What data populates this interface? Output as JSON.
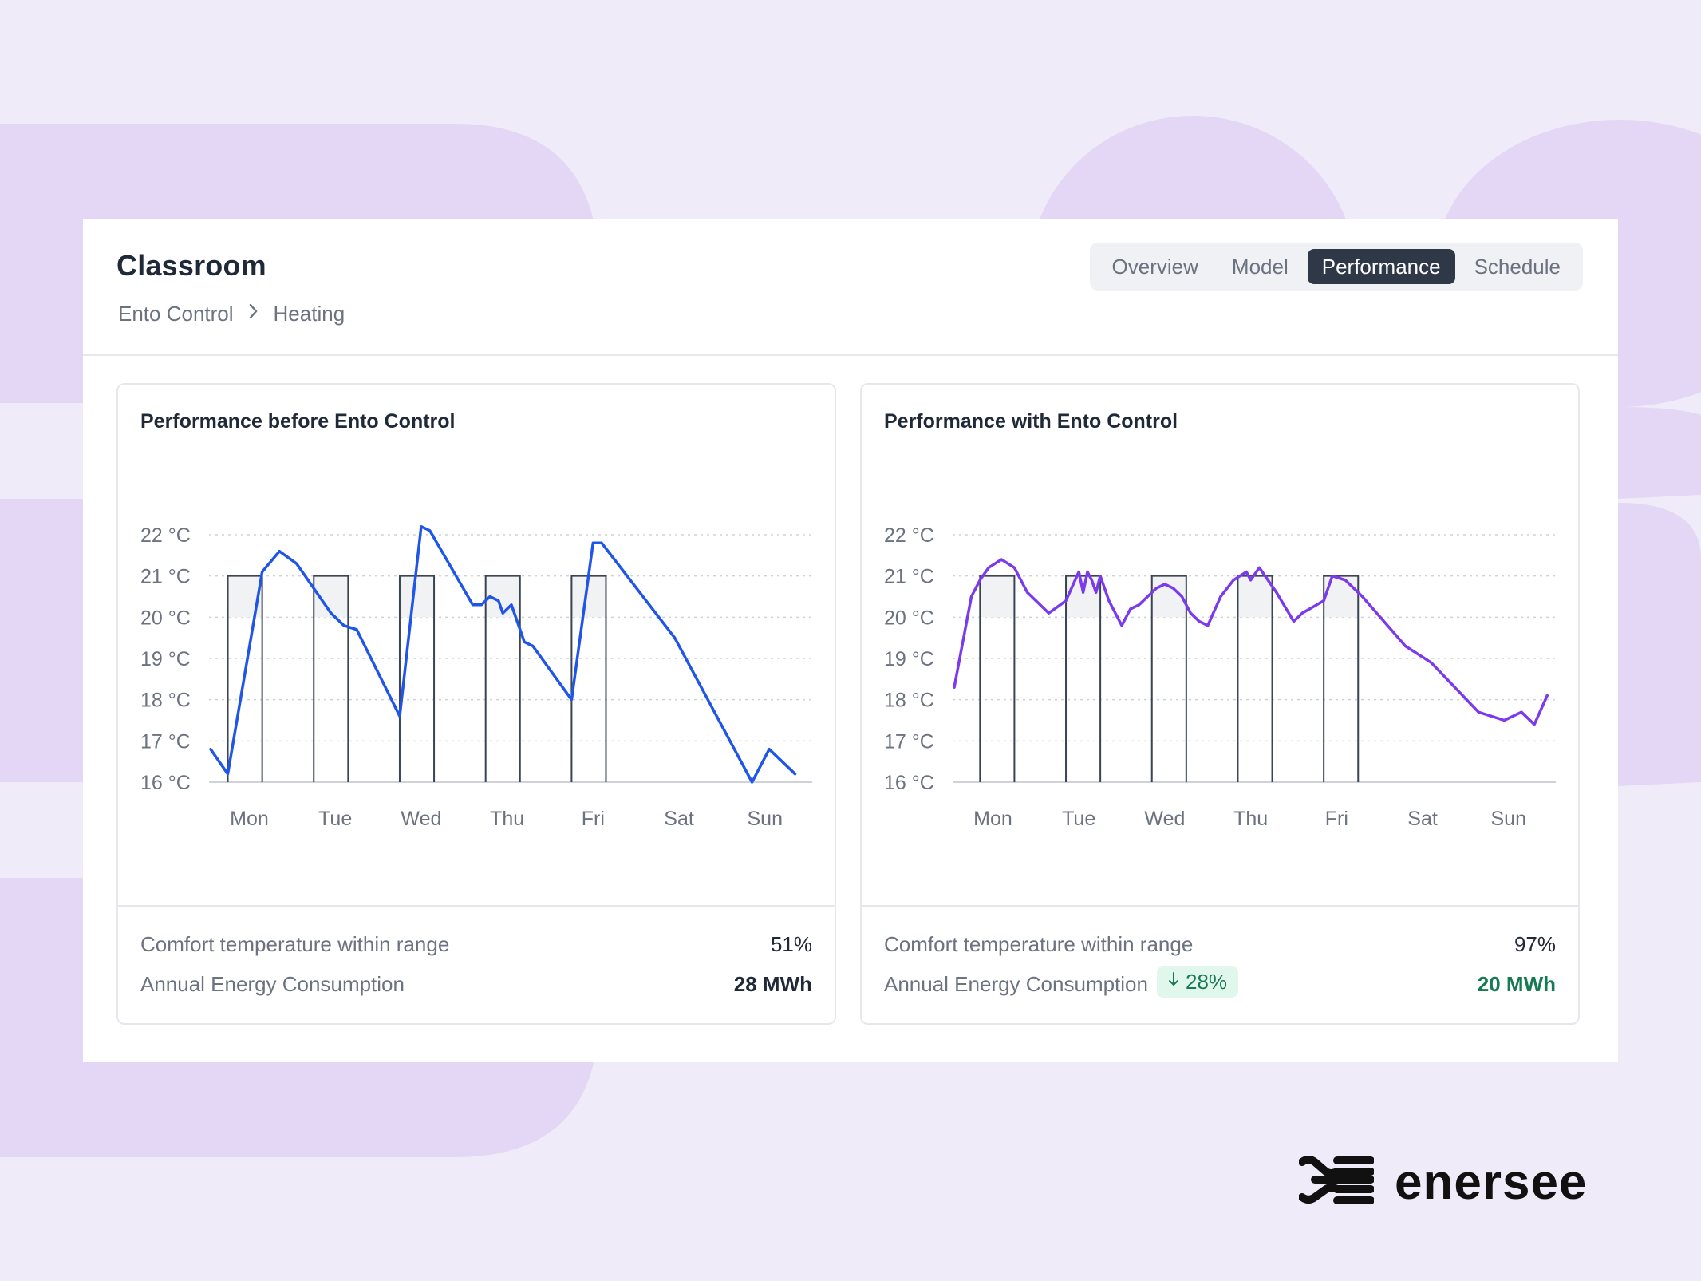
{
  "header": {
    "title": "Classroom",
    "breadcrumb": [
      "Ento Control",
      "Heating"
    ]
  },
  "tabs": [
    {
      "label": "Overview",
      "active": false
    },
    {
      "label": "Model",
      "active": false
    },
    {
      "label": "Performance",
      "active": true
    },
    {
      "label": "Schedule",
      "active": false
    }
  ],
  "panels": [
    {
      "title": "Performance before Ento Control",
      "stats": {
        "comfort_label": "Comfort temperature within range",
        "comfort_value": "51%",
        "energy_label": "Annual Energy Consumption",
        "energy_value": "28 MWh"
      }
    },
    {
      "title": "Performance with Ento Control",
      "stats": {
        "comfort_label": "Comfort temperature within range",
        "comfort_value": "97%",
        "energy_label": "Annual Energy Consumption",
        "energy_change": "28%",
        "energy_value": "20 MWh"
      }
    }
  ],
  "chart_data": [
    {
      "type": "line",
      "title": "Performance before Ento Control",
      "x_ticks": [
        "Mon",
        "Tue",
        "Wed",
        "Thu",
        "Fri",
        "Sat",
        "Sun"
      ],
      "y_ticks": [
        "22 °C",
        "21 °C",
        "20 °C",
        "19 °C",
        "18 °C",
        "17 °C",
        "16 °C"
      ],
      "ylim": [
        16,
        22
      ],
      "xlim": [
        0,
        7
      ],
      "grid": true,
      "line_color": "#1f56e8",
      "comfort_band": {
        "low": 20,
        "high": 21
      },
      "schedule_blocks": [
        {
          "start": 0.2,
          "end": 0.6,
          "top": 21
        },
        {
          "start": 1.2,
          "end": 1.6,
          "top": 21
        },
        {
          "start": 2.2,
          "end": 2.6,
          "top": 21
        },
        {
          "start": 3.2,
          "end": 3.6,
          "top": 21
        },
        {
          "start": 4.2,
          "end": 4.6,
          "top": 21
        }
      ],
      "series": [
        {
          "x": [
            0.0,
            0.2,
            0.6,
            0.8,
            1.0,
            1.2,
            1.4,
            1.55,
            1.7,
            2.2,
            2.45,
            2.55,
            3.05,
            3.15,
            3.25,
            3.35,
            3.4,
            3.5,
            3.65,
            3.75,
            4.2,
            4.45,
            4.55,
            5.4,
            6.3,
            6.5,
            6.8
          ],
          "y": [
            16.8,
            16.2,
            21.1,
            21.6,
            21.3,
            20.7,
            20.1,
            19.8,
            19.7,
            17.6,
            22.2,
            22.1,
            20.3,
            20.3,
            20.5,
            20.4,
            20.1,
            20.3,
            19.4,
            19.3,
            18.0,
            21.8,
            21.8,
            19.5,
            16.0,
            16.8,
            16.2
          ]
        }
      ]
    },
    {
      "type": "line",
      "title": "Performance with Ento Control",
      "x_ticks": [
        "Mon",
        "Tue",
        "Wed",
        "Thu",
        "Fri",
        "Sat",
        "Sun"
      ],
      "y_ticks": [
        "22 °C",
        "21 °C",
        "20 °C",
        "19 °C",
        "18 °C",
        "17 °C",
        "16 °C"
      ],
      "ylim": [
        16,
        22
      ],
      "xlim": [
        0,
        7
      ],
      "grid": true,
      "line_color": "#7c3aed",
      "comfort_band": {
        "low": 20,
        "high": 21
      },
      "schedule_blocks": [
        {
          "start": 0.3,
          "end": 0.7,
          "top": 21
        },
        {
          "start": 1.3,
          "end": 1.7,
          "top": 21
        },
        {
          "start": 2.3,
          "end": 2.7,
          "top": 21
        },
        {
          "start": 3.3,
          "end": 3.7,
          "top": 21
        },
        {
          "start": 4.3,
          "end": 4.7,
          "top": 21
        }
      ],
      "series": [
        {
          "x": [
            0.0,
            0.2,
            0.3,
            0.4,
            0.55,
            0.7,
            0.85,
            1.1,
            1.3,
            1.45,
            1.5,
            1.55,
            1.6,
            1.65,
            1.7,
            1.8,
            1.95,
            2.05,
            2.15,
            2.25,
            2.35,
            2.45,
            2.55,
            2.65,
            2.75,
            2.85,
            2.95,
            3.1,
            3.25,
            3.4,
            3.45,
            3.55,
            3.75,
            3.95,
            4.05,
            4.3,
            4.4,
            4.55,
            4.75,
            5.25,
            5.55,
            6.1,
            6.4,
            6.6,
            6.75,
            6.9
          ],
          "y": [
            18.3,
            20.5,
            20.9,
            21.2,
            21.4,
            21.2,
            20.6,
            20.1,
            20.4,
            21.1,
            20.6,
            21.1,
            20.9,
            20.6,
            21.0,
            20.4,
            19.8,
            20.2,
            20.3,
            20.5,
            20.7,
            20.8,
            20.7,
            20.5,
            20.1,
            19.9,
            19.8,
            20.5,
            20.9,
            21.1,
            20.9,
            21.2,
            20.6,
            19.9,
            20.1,
            20.4,
            21.0,
            20.9,
            20.5,
            19.3,
            18.9,
            17.7,
            17.5,
            17.7,
            17.4,
            18.1
          ]
        }
      ]
    }
  ],
  "colors": {
    "accent_dark": "#2f3846",
    "positive": "#167a55",
    "background": "#efebf8"
  },
  "logo": {
    "text": "enersee",
    "icon": "enersee-logo-icon"
  }
}
